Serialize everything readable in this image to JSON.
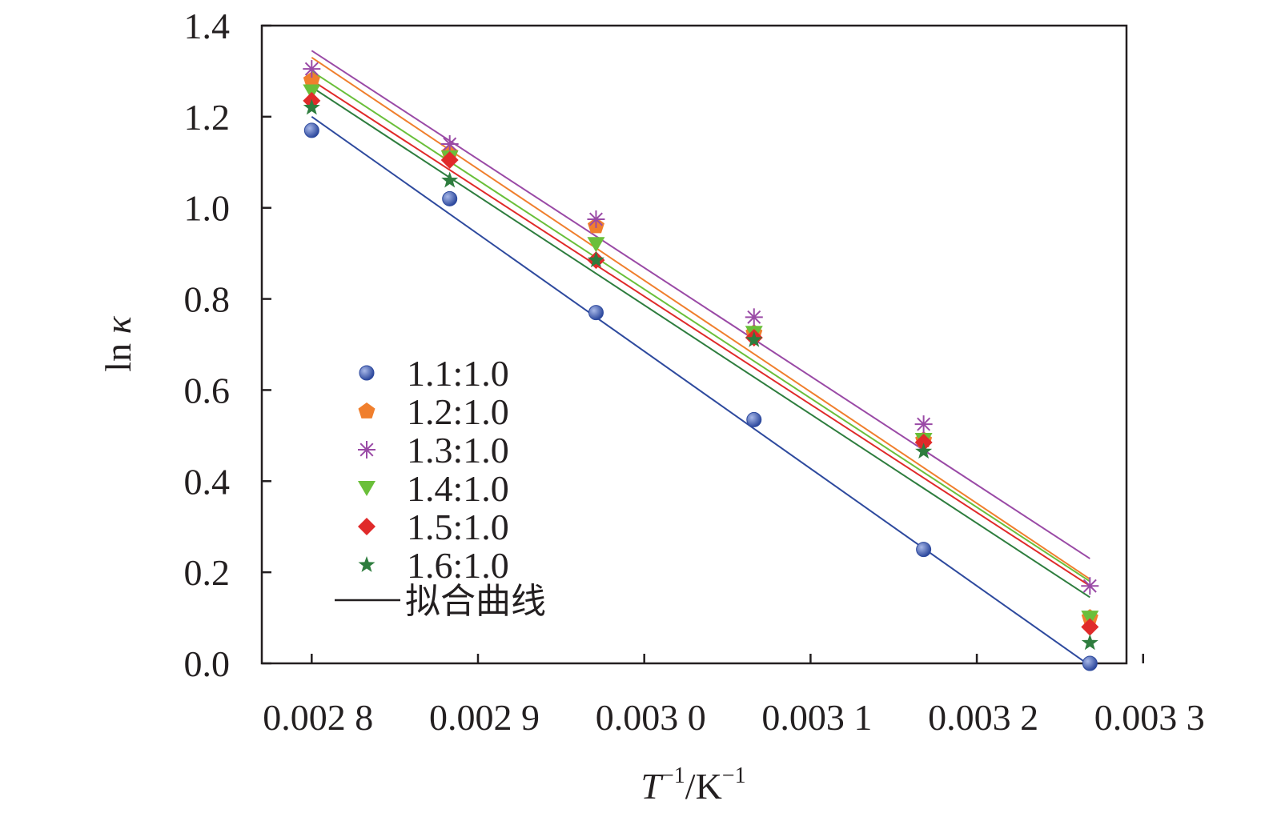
{
  "chart_data": {
    "type": "scatter",
    "x_tick_labels": [
      "0.002 8",
      "0.002 9",
      "0.003 0",
      "0.003 1",
      "0.003 2",
      "0.003 3"
    ],
    "x_ticks": [
      0.0028,
      0.0029,
      0.003,
      0.0031,
      0.0032,
      0.0033
    ],
    "y_tick_labels": [
      "0.0",
      "0.2",
      "0.4",
      "0.6",
      "0.8",
      "1.0",
      "1.2",
      "1.4"
    ],
    "y_ticks": [
      0.0,
      0.2,
      0.4,
      0.6,
      0.8,
      1.0,
      1.2,
      1.4
    ],
    "xlim": [
      0.00277,
      0.00329
    ],
    "ylim": [
      0.0,
      1.4
    ],
    "xlabel": {
      "main": "T",
      "sup1": "−1",
      "mid": "/K",
      "sup2": "−1"
    },
    "ylabel": {
      "main": "ln ",
      "symbol": "κ"
    },
    "x": [
      0.0028,
      0.002883,
      0.002971,
      0.003066,
      0.003168,
      0.003268
    ],
    "series": [
      {
        "name": "1.1:1.0",
        "marker": "circle",
        "color": "#2e4a9e",
        "values": [
          1.17,
          1.02,
          0.77,
          0.535,
          0.25,
          0.0
        ],
        "fit": [
          1.2,
          -0.005
        ]
      },
      {
        "name": "1.2:1.0",
        "marker": "pentagon",
        "color": "#f07f2d",
        "values": [
          1.28,
          1.12,
          0.96,
          0.725,
          0.49,
          0.1
        ],
        "fit": [
          1.33,
          0.185
        ]
      },
      {
        "name": "1.3:1.0",
        "marker": "asterisk",
        "color": "#9a4aa6",
        "values": [
          1.305,
          1.14,
          0.975,
          0.76,
          0.525,
          0.17
        ],
        "fit": [
          1.345,
          0.23
        ]
      },
      {
        "name": "1.4:1.0",
        "marker": "triangle-down",
        "color": "#6abf3a",
        "values": [
          1.255,
          1.11,
          0.92,
          0.725,
          0.49,
          0.1
        ],
        "fit": [
          1.3,
          0.18
        ]
      },
      {
        "name": "1.5:1.0",
        "marker": "diamond",
        "color": "#e02a2a",
        "values": [
          1.235,
          1.105,
          0.885,
          0.715,
          0.485,
          0.08
        ],
        "fit": [
          1.28,
          0.17
        ]
      },
      {
        "name": "1.6:1.0",
        "marker": "star",
        "color": "#2e7d3e",
        "values": [
          1.22,
          1.06,
          0.885,
          0.71,
          0.465,
          0.045
        ],
        "fit": [
          1.265,
          0.145
        ]
      }
    ],
    "fit_legend_label": "拟合曲线",
    "fit_legend_color": "#231f20",
    "legend_position": "center-left",
    "grid": false
  }
}
